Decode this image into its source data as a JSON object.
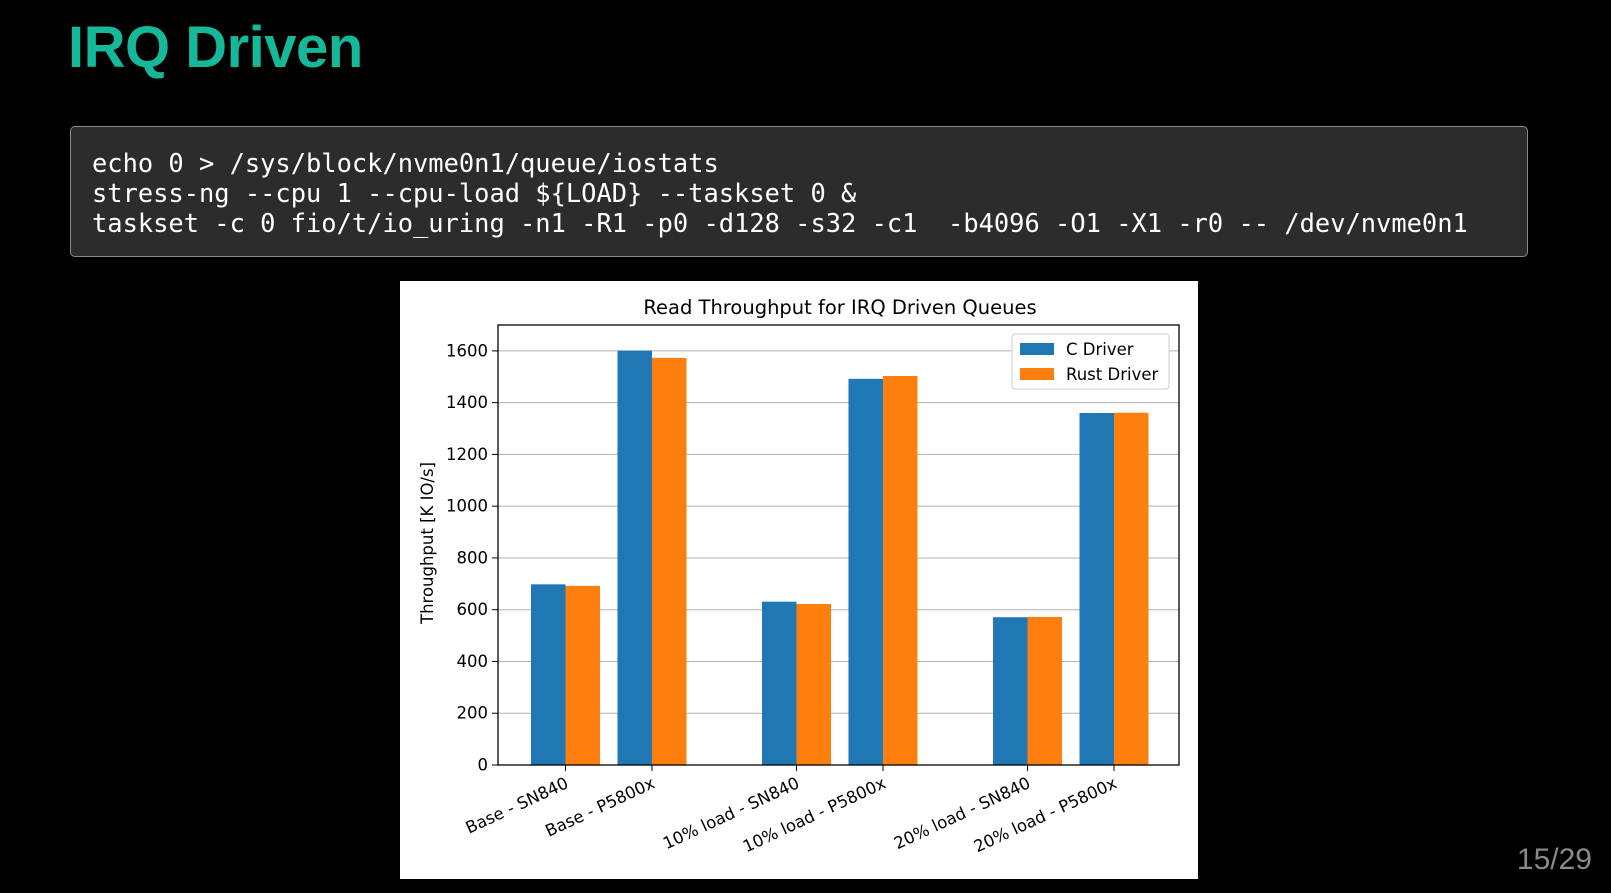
{
  "slide": {
    "title": "IRQ Driven",
    "page_number": "15/29"
  },
  "code": {
    "lines": [
      "echo 0 > /sys/block/nvme0n1/queue/iostats",
      "stress-ng --cpu 1 --cpu-load ${LOAD} --taskset 0 &",
      "taskset -c 0 fio/t/io_uring -n1 -R1 -p0 -d128 -s32 -c1  -b4096 -O1 -X1 -r0 -- /dev/nvme0n1"
    ]
  },
  "chart_data": {
    "type": "bar",
    "title": "Read Throughput for IRQ Driven Queues",
    "xlabel": "",
    "ylabel": "Throughput [K IO/s]",
    "categories": [
      "Base - SN840",
      "Base - P5800x",
      "10% load - SN840",
      "10% load - P5800x",
      "20% load - SN840",
      "20% load - P5800x"
    ],
    "series": [
      {
        "name": "C Driver",
        "color": "#1f77b4",
        "values": [
          698,
          1601,
          631,
          1492,
          571,
          1360
        ]
      },
      {
        "name": "Rust Driver",
        "color": "#ff7f0e",
        "values": [
          692,
          1573,
          622,
          1503,
          572,
          1361
        ]
      }
    ],
    "ylim": [
      0,
      1700
    ],
    "yticks": [
      0,
      200,
      400,
      600,
      800,
      1000,
      1200,
      1400,
      1600
    ],
    "grid": "y",
    "legend_position": "top-right"
  }
}
